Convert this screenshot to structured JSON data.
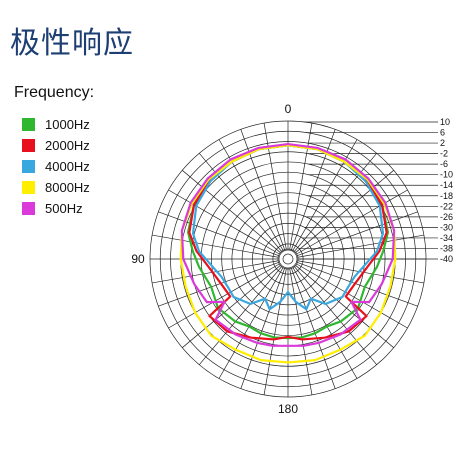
{
  "title": "极性响应",
  "legend_title": "Frequency:",
  "colors": {
    "title": "#1d3f73",
    "grid": "#222222"
  },
  "chart_data": {
    "type": "polar",
    "angle_labels": [
      {
        "deg": 0,
        "text": "0"
      },
      {
        "deg": 270,
        "text": "90"
      },
      {
        "deg": 180,
        "text": "180"
      }
    ],
    "r_ticks": [
      10,
      6,
      2,
      -2,
      -6,
      -10,
      -14,
      -18,
      -22,
      -26,
      -30,
      -34,
      -38,
      -40
    ],
    "r_range": [
      -40,
      10
    ],
    "angle_step_deg": 10,
    "series": [
      {
        "name": "1000Hz",
        "color": "#2fb82f",
        "points": [
          [
            0,
            0.5
          ],
          [
            15,
            0.5
          ],
          [
            30,
            0
          ],
          [
            45,
            -0.5
          ],
          [
            60,
            -1.5
          ],
          [
            75,
            -3.5
          ],
          [
            85,
            -6.5
          ],
          [
            95,
            -9
          ],
          [
            110,
            -12
          ],
          [
            125,
            -10.5
          ],
          [
            140,
            -12
          ],
          [
            150,
            -13.5
          ],
          [
            160,
            -13
          ],
          [
            170,
            -12.8
          ],
          [
            180,
            -13
          ],
          [
            190,
            -12.8
          ],
          [
            200,
            -13
          ],
          [
            210,
            -13.5
          ],
          [
            220,
            -12
          ],
          [
            235,
            -10.5
          ],
          [
            250,
            -12
          ],
          [
            265,
            -9
          ],
          [
            275,
            -6.5
          ],
          [
            285,
            -3.5
          ],
          [
            300,
            -1.5
          ],
          [
            315,
            -0.5
          ],
          [
            330,
            0
          ],
          [
            345,
            0.5
          ],
          [
            360,
            0.5
          ]
        ]
      },
      {
        "name": "2000Hz",
        "color": "#e8101e",
        "points": [
          [
            0,
            0.5
          ],
          [
            15,
            0.5
          ],
          [
            30,
            0
          ],
          [
            45,
            -0.5
          ],
          [
            60,
            -1.5
          ],
          [
            75,
            -4
          ],
          [
            85,
            -8
          ],
          [
            95,
            -12.5
          ],
          [
            110,
            -16
          ],
          [
            123,
            -17
          ],
          [
            126,
            -6
          ],
          [
            140,
            -7
          ],
          [
            155,
            -10
          ],
          [
            170,
            -12
          ],
          [
            180,
            -13.5
          ],
          [
            190,
            -12
          ],
          [
            205,
            -10
          ],
          [
            220,
            -7
          ],
          [
            234,
            -6
          ],
          [
            237,
            -17
          ],
          [
            250,
            -16
          ],
          [
            265,
            -12.5
          ],
          [
            275,
            -8
          ],
          [
            285,
            -4
          ],
          [
            300,
            -1.5
          ],
          [
            315,
            -0.5
          ],
          [
            330,
            0
          ],
          [
            345,
            0.5
          ],
          [
            360,
            0.5
          ]
        ]
      },
      {
        "name": "4000Hz",
        "color": "#3aa8e0",
        "points": [
          [
            0,
            0.5
          ],
          [
            15,
            0.5
          ],
          [
            30,
            0
          ],
          [
            45,
            -1
          ],
          [
            60,
            -2.5
          ],
          [
            75,
            -5.5
          ],
          [
            85,
            -9
          ],
          [
            95,
            -14
          ],
          [
            105,
            -17
          ],
          [
            115,
            -18
          ],
          [
            125,
            -18
          ],
          [
            140,
            -21
          ],
          [
            150,
            -26
          ],
          [
            160,
            -23
          ],
          [
            170,
            -27
          ],
          [
            180,
            -31
          ],
          [
            190,
            -27
          ],
          [
            200,
            -23
          ],
          [
            210,
            -26
          ],
          [
            220,
            -21
          ],
          [
            235,
            -18
          ],
          [
            245,
            -18
          ],
          [
            255,
            -17
          ],
          [
            265,
            -14
          ],
          [
            275,
            -9
          ],
          [
            285,
            -5.5
          ],
          [
            300,
            -2.5
          ],
          [
            315,
            -1
          ],
          [
            330,
            0
          ],
          [
            345,
            0.5
          ],
          [
            360,
            0.5
          ]
        ]
      },
      {
        "name": "8000Hz",
        "color": "#ffee00",
        "points": [
          [
            0,
            0.5
          ],
          [
            15,
            0.5
          ],
          [
            30,
            0
          ],
          [
            45,
            0
          ],
          [
            60,
            -0.5
          ],
          [
            75,
            -1
          ],
          [
            90,
            -2
          ],
          [
            105,
            -2.5
          ],
          [
            120,
            -2
          ],
          [
            135,
            -1.5
          ],
          [
            150,
            -3
          ],
          [
            165,
            -3
          ],
          [
            180,
            -3.5
          ],
          [
            195,
            -3
          ],
          [
            210,
            -3
          ],
          [
            225,
            -1.5
          ],
          [
            240,
            -2
          ],
          [
            255,
            -2.5
          ],
          [
            270,
            -2
          ],
          [
            285,
            -1
          ],
          [
            300,
            -0.5
          ],
          [
            315,
            0
          ],
          [
            330,
            0
          ],
          [
            345,
            0.5
          ],
          [
            360,
            0.5
          ]
        ]
      },
      {
        "name": "500Hz",
        "color": "#d93ad9",
        "points": [
          [
            0,
            1
          ],
          [
            15,
            1
          ],
          [
            30,
            1
          ],
          [
            45,
            0.5
          ],
          [
            60,
            0
          ],
          [
            75,
            -1
          ],
          [
            90,
            -3
          ],
          [
            105,
            -6
          ],
          [
            118,
            -8
          ],
          [
            124,
            -14
          ],
          [
            130,
            -7
          ],
          [
            145,
            -8
          ],
          [
            160,
            -9
          ],
          [
            170,
            -9.5
          ],
          [
            180,
            -10
          ],
          [
            190,
            -9.5
          ],
          [
            200,
            -9
          ],
          [
            215,
            -8
          ],
          [
            230,
            -7
          ],
          [
            236,
            -14
          ],
          [
            242,
            -8
          ],
          [
            255,
            -6
          ],
          [
            270,
            -3
          ],
          [
            285,
            -1
          ],
          [
            300,
            0
          ],
          [
            315,
            0.5
          ],
          [
            330,
            1
          ],
          [
            345,
            1
          ],
          [
            360,
            1
          ]
        ]
      }
    ]
  }
}
